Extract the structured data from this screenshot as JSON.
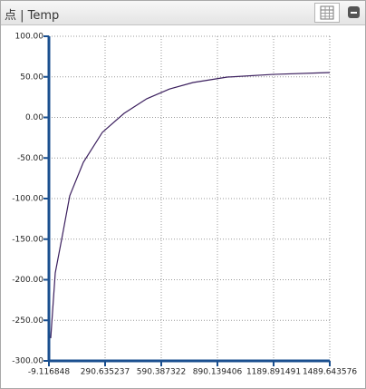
{
  "window": {
    "title": "点 | Temp"
  },
  "chart_data": {
    "type": "line",
    "x": [
      0.5,
      24.7,
      63.4,
      102,
      174.6,
      276,
      392,
      513,
      634,
      760,
      943,
      1185,
      1489.6
    ],
    "series": [
      {
        "color": "#3b1f5e",
        "values": [
          -272,
          -191.6,
          -144.7,
          -96.6,
          -55.3,
          -18.4,
          5,
          23,
          35,
          43,
          49.7,
          53,
          55.3
        ]
      }
    ],
    "xlim": [
      -9.116848,
      1489.643576
    ],
    "xticks": [
      -9.116848,
      290.635237,
      590.387322,
      890.139406,
      1189.891491,
      1489.643576
    ],
    "ylim": [
      -300,
      100
    ],
    "yticks": [
      {
        "value": 100,
        "label": "100.00"
      },
      {
        "value": 50,
        "label": "50.00"
      },
      {
        "value": 0,
        "label": "0.00"
      },
      {
        "value": -50,
        "label": "-50.00"
      },
      {
        "value": -100,
        "label": "-100.00"
      },
      {
        "value": -150,
        "label": "-150.00"
      },
      {
        "value": -200,
        "label": "-200.00"
      },
      {
        "value": -250,
        "label": "-250.00"
      },
      {
        "value": -300,
        "label": "-300.00"
      }
    ],
    "grid": true
  }
}
